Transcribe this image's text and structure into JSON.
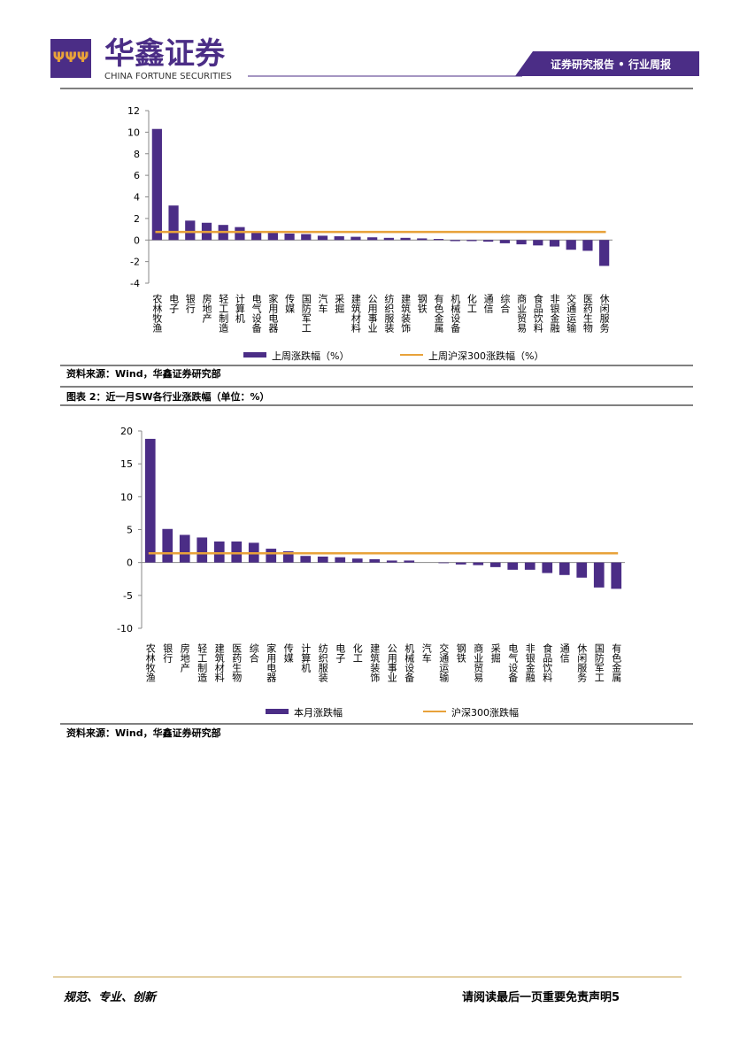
{
  "header": {
    "company": "华鑫证券",
    "company_en": "CHINA FORTUNE SECURITIES",
    "tag": "证券研究报告 • 行业周报"
  },
  "chart_data": [
    {
      "type": "bar",
      "categories": [
        "农林牧渔",
        "电子",
        "银行",
        "房地产",
        "轻工制造",
        "计算机",
        "电气设备",
        "家用电器",
        "传媒",
        "国防军工",
        "汽车",
        "采掘",
        "建筑材料",
        "公用事业",
        "纺织服装",
        "建筑装饰",
        "钢铁",
        "有色金属",
        "机械设备",
        "化工",
        "通信",
        "综合",
        "商业贸易",
        "食品饮料",
        "非银金融",
        "交通运输",
        "医药生物",
        "休闲服务"
      ],
      "series": [
        {
          "name": "上周涨跌幅（%）",
          "color": "#4b2d86",
          "values": [
            10.3,
            3.2,
            1.8,
            1.6,
            1.4,
            1.2,
            0.8,
            0.7,
            0.6,
            0.55,
            0.4,
            0.35,
            0.3,
            0.25,
            0.2,
            0.2,
            0.15,
            0.1,
            -0.1,
            -0.1,
            -0.15,
            -0.3,
            -0.4,
            -0.5,
            -0.6,
            -0.9,
            -1.0,
            -2.4
          ]
        }
      ],
      "reference_line": {
        "name": "上周沪深300涨跌幅（%）",
        "color": "#e8a23a",
        "value": 0.75
      },
      "ylim": [
        -4,
        12
      ],
      "yticks": [
        -4,
        -2,
        0,
        2,
        4,
        6,
        8,
        10,
        12
      ],
      "source": "资料来源：Wind，华鑫证券研究部"
    },
    {
      "type": "bar",
      "title": "图表 2：近一月SW各行业涨跌幅（单位：%）",
      "categories": [
        "农林牧渔",
        "银行",
        "房地产",
        "轻工制造",
        "建筑材料",
        "医药生物",
        "综合",
        "家用电器",
        "传媒",
        "计算机",
        "纺织服装",
        "电子",
        "化工",
        "建筑装饰",
        "公用事业",
        "机械设备",
        "汽车",
        "交通运输",
        "钢铁",
        "商业贸易",
        "采掘",
        "电气设备",
        "非银金融",
        "食品饮料",
        "通信",
        "休闲服务",
        "国防军工",
        "有色金属"
      ],
      "series": [
        {
          "name": "本月涨跌幅",
          "color": "#4b2d86",
          "values": [
            18.8,
            5.1,
            4.2,
            3.8,
            3.2,
            3.2,
            3.0,
            2.1,
            1.7,
            1.0,
            0.9,
            0.8,
            0.6,
            0.5,
            0.3,
            0.3,
            0.0,
            -0.1,
            -0.3,
            -0.4,
            -0.7,
            -1.1,
            -1.1,
            -1.6,
            -1.9,
            -2.3,
            -3.8,
            -4.0
          ]
        }
      ],
      "reference_line": {
        "name": "沪深300涨跌幅",
        "color": "#e8a23a",
        "value": 1.4
      },
      "ylim": [
        -10,
        20
      ],
      "yticks": [
        -10,
        -5,
        0,
        5,
        10,
        15,
        20
      ],
      "source": "资料来源：Wind，华鑫证券研究部"
    }
  ],
  "footer": {
    "motto": "规范、专业、创新",
    "notice": "请阅读最后一页重要免责声明5"
  }
}
